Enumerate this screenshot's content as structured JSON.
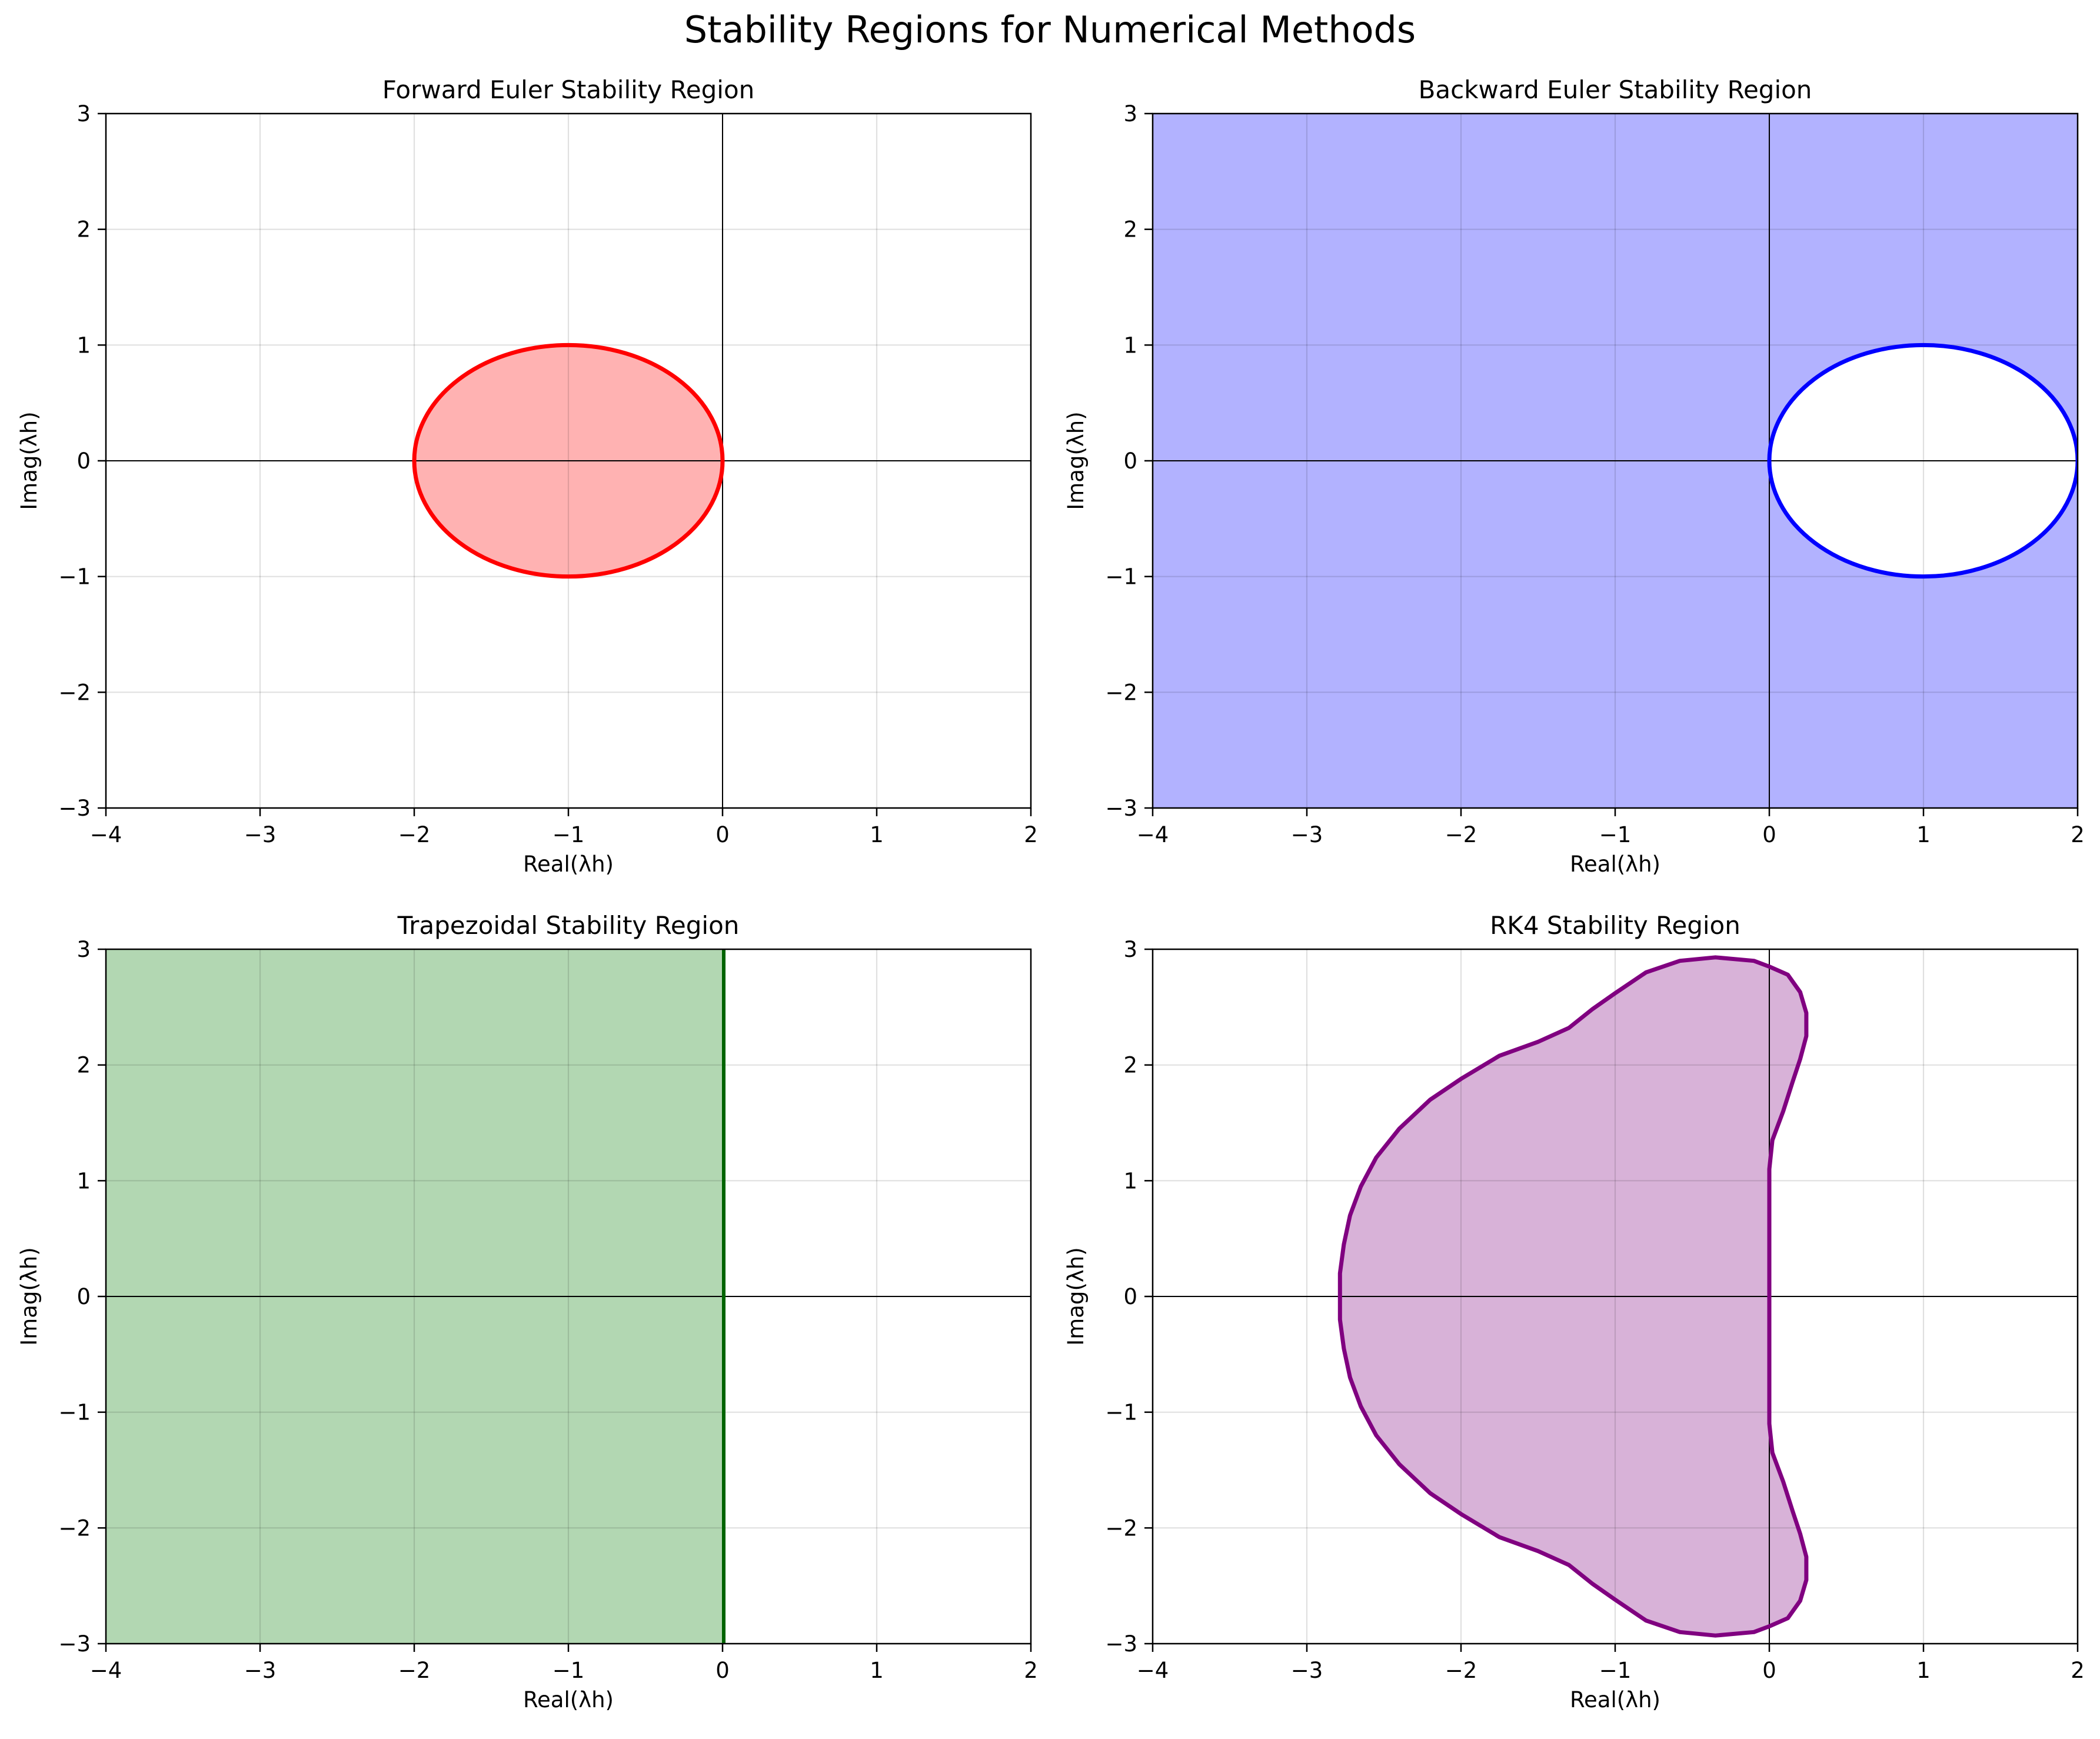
{
  "title": "Stability Regions for Numerical Methods",
  "chart_data": [
    {
      "type": "area",
      "title": "Forward Euler Stability Region",
      "xlabel": "Real(λh)",
      "ylabel": "Imag(λh)",
      "xlim": [
        -4,
        2
      ],
      "ylim": [
        -3,
        3
      ],
      "xticks": [
        "−4",
        "−3",
        "−2",
        "−1",
        "0",
        "1",
        "2"
      ],
      "yticks": [
        "−3",
        "−2",
        "−1",
        "0",
        "1",
        "2",
        "3"
      ],
      "grid": true,
      "region": "|1 + z| <= 1",
      "shape": "disk",
      "center": [
        -1,
        0
      ],
      "radius": 1,
      "stable_side": "inside",
      "color": "#ff0000",
      "fill": "#ffb2b2"
    },
    {
      "type": "area",
      "title": "Backward Euler Stability Region",
      "xlabel": "Real(λh)",
      "ylabel": "Imag(λh)",
      "xlim": [
        -4,
        2
      ],
      "ylim": [
        -3,
        3
      ],
      "xticks": [
        "−4",
        "−3",
        "−2",
        "−1",
        "0",
        "1",
        "2"
      ],
      "yticks": [
        "−3",
        "−2",
        "−1",
        "0",
        "1",
        "2",
        "3"
      ],
      "grid": true,
      "region": "|1 - z| >= 1",
      "shape": "disk",
      "center": [
        1,
        0
      ],
      "radius": 1,
      "stable_side": "outside",
      "color": "#0000ff",
      "fill": "#b2b2ff"
    },
    {
      "type": "area",
      "title": "Trapezoidal Stability Region",
      "xlabel": "Real(λh)",
      "ylabel": "Imag(λh)",
      "xlim": [
        -4,
        2
      ],
      "ylim": [
        -3,
        3
      ],
      "xticks": [
        "−4",
        "−3",
        "−2",
        "−1",
        "0",
        "1",
        "2"
      ],
      "yticks": [
        "−3",
        "−2",
        "−1",
        "0",
        "1",
        "2",
        "3"
      ],
      "grid": true,
      "region": "Re(z) <= 0",
      "shape": "halfplane",
      "boundary_x": 0,
      "stable_side": "left",
      "color": "#006400",
      "fill": "#b2d7b2"
    },
    {
      "type": "area",
      "title": "RK4 Stability Region",
      "xlabel": "Real(λh)",
      "ylabel": "Imag(λh)",
      "xlim": [
        -4,
        2
      ],
      "ylim": [
        -3,
        3
      ],
      "xticks": [
        "−4",
        "−3",
        "−2",
        "−1",
        "0",
        "1",
        "2"
      ],
      "yticks": [
        "−3",
        "−2",
        "−1",
        "0",
        "1",
        "2",
        "3"
      ],
      "grid": true,
      "region": "|1 + z + z^2/2 + z^3/6 + z^4/24| <= 1",
      "shape": "boundary",
      "boundary_points": [
        [
          0,
          1.1
        ],
        [
          0.02,
          1.35
        ],
        [
          0.09,
          1.6
        ],
        [
          0.15,
          1.85
        ],
        [
          0.2,
          2.05
        ],
        [
          0.24,
          2.25
        ],
        [
          0.24,
          2.45
        ],
        [
          0.2,
          2.63
        ],
        [
          0.12,
          2.78
        ],
        [
          0,
          2.85
        ],
        [
          -0.1,
          2.9
        ],
        [
          -0.35,
          2.93
        ],
        [
          -0.58,
          2.9
        ],
        [
          -0.8,
          2.8
        ],
        [
          -1.0,
          2.62
        ],
        [
          -1.15,
          2.48
        ],
        [
          -1.3,
          2.32
        ],
        [
          -1.5,
          2.2
        ],
        [
          -1.75,
          2.08
        ],
        [
          -2.0,
          1.88
        ],
        [
          -2.2,
          1.7
        ],
        [
          -2.4,
          1.45
        ],
        [
          -2.55,
          1.2
        ],
        [
          -2.65,
          0.95
        ],
        [
          -2.72,
          0.7
        ],
        [
          -2.76,
          0.45
        ],
        [
          -2.785,
          0.2
        ],
        [
          -2.785,
          0
        ],
        [
          -2.785,
          -0.2
        ],
        [
          -2.76,
          -0.45
        ],
        [
          -2.72,
          -0.7
        ],
        [
          -2.65,
          -0.95
        ],
        [
          -2.55,
          -1.2
        ],
        [
          -2.4,
          -1.45
        ],
        [
          -2.2,
          -1.7
        ],
        [
          -2.0,
          -1.88
        ],
        [
          -1.75,
          -2.08
        ],
        [
          -1.5,
          -2.2
        ],
        [
          -1.3,
          -2.32
        ],
        [
          -1.15,
          -2.48
        ],
        [
          -1.0,
          -2.62
        ],
        [
          -0.8,
          -2.8
        ],
        [
          -0.58,
          -2.9
        ],
        [
          -0.35,
          -2.93
        ],
        [
          -0.1,
          -2.9
        ],
        [
          0,
          -2.85
        ],
        [
          0.12,
          -2.78
        ],
        [
          0.2,
          -2.63
        ],
        [
          0.24,
          -2.45
        ],
        [
          0.24,
          -2.25
        ],
        [
          0.2,
          -2.05
        ],
        [
          0.15,
          -1.85
        ],
        [
          0.09,
          -1.6
        ],
        [
          0.02,
          -1.35
        ],
        [
          0,
          -1.1
        ],
        [
          0,
          0
        ]
      ],
      "stable_side": "inside",
      "color": "#800080",
      "fill": "#d8b2d8"
    }
  ]
}
